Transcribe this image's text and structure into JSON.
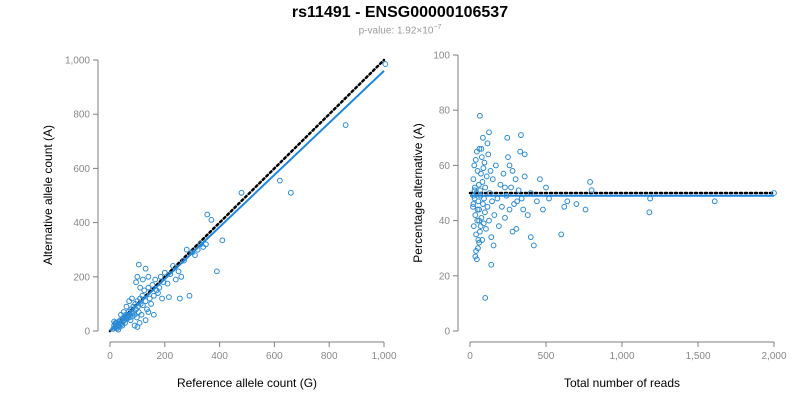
{
  "figure": {
    "title": "rs11491 - ENSG00000106537",
    "subtitle_base": "p-value: 1.92×10",
    "subtitle_exp": "−7"
  },
  "colors": {
    "points": "#2a8ad4",
    "fit_line": "#1f86e0",
    "reference_line": "#000000",
    "axis": "#7f7f7f",
    "tick_text": "#888888"
  },
  "chart_data": [
    {
      "type": "scatter",
      "xlabel": "Reference allele count (G)",
      "ylabel": "Alternative allele count (A)",
      "xlim": [
        0,
        1000
      ],
      "ylim": [
        0,
        1000
      ],
      "xticks": [
        0,
        200,
        400,
        600,
        800,
        1000
      ],
      "xtick_labels": [
        "0",
        "200",
        "400",
        "600",
        "800",
        "1,000"
      ],
      "yticks": [
        0,
        200,
        400,
        600,
        800,
        1000
      ],
      "ytick_labels": [
        "0",
        "200",
        "400",
        "600",
        "800",
        "1,000"
      ],
      "grid": false,
      "reference_line": {
        "style": "dotted",
        "points": [
          [
            0,
            0
          ],
          [
            1000,
            1000
          ]
        ]
      },
      "fit_line": {
        "style": "solid",
        "points": [
          [
            0,
            0
          ],
          [
            1000,
            960
          ]
        ]
      },
      "points": [
        [
          12,
          8
        ],
        [
          15,
          20
        ],
        [
          18,
          12
        ],
        [
          20,
          25
        ],
        [
          22,
          15
        ],
        [
          25,
          30
        ],
        [
          28,
          18
        ],
        [
          30,
          22
        ],
        [
          32,
          35
        ],
        [
          35,
          28
        ],
        [
          38,
          40
        ],
        [
          40,
          30
        ],
        [
          42,
          25
        ],
        [
          45,
          45
        ],
        [
          48,
          35
        ],
        [
          50,
          50
        ],
        [
          52,
          40
        ],
        [
          55,
          30
        ],
        [
          58,
          60
        ],
        [
          60,
          45
        ],
        [
          62,
          55
        ],
        [
          65,
          48
        ],
        [
          68,
          70
        ],
        [
          70,
          60
        ],
        [
          72,
          50
        ],
        [
          75,
          40
        ],
        [
          78,
          80
        ],
        [
          80,
          65
        ],
        [
          82,
          55
        ],
        [
          85,
          90
        ],
        [
          88,
          70
        ],
        [
          90,
          60
        ],
        [
          92,
          100
        ],
        [
          95,
          80
        ],
        [
          98,
          50
        ],
        [
          100,
          110
        ],
        [
          102,
          90
        ],
        [
          105,
          70
        ],
        [
          108,
          30
        ],
        [
          110,
          120
        ],
        [
          112,
          100
        ],
        [
          115,
          60
        ],
        [
          118,
          130
        ],
        [
          120,
          95
        ],
        [
          125,
          150
        ],
        [
          130,
          110
        ],
        [
          135,
          80
        ],
        [
          140,
          160
        ],
        [
          145,
          120
        ],
        [
          150,
          100
        ],
        [
          155,
          170
        ],
        [
          160,
          130
        ],
        [
          165,
          190
        ],
        [
          170,
          150
        ],
        [
          175,
          140
        ],
        [
          180,
          160
        ],
        [
          185,
          200
        ],
        [
          190,
          120
        ],
        [
          195,
          180
        ],
        [
          200,
          215
        ],
        [
          95,
          180
        ],
        [
          100,
          200
        ],
        [
          105,
          245
        ],
        [
          110,
          160
        ],
        [
          120,
          190
        ],
        [
          130,
          230
        ],
        [
          140,
          200
        ],
        [
          60,
          90
        ],
        [
          70,
          110
        ],
        [
          80,
          120
        ],
        [
          210,
          175
        ],
        [
          220,
          210
        ],
        [
          230,
          240
        ],
        [
          240,
          190
        ],
        [
          250,
          220
        ],
        [
          260,
          200
        ],
        [
          270,
          260
        ],
        [
          280,
          300
        ],
        [
          290,
          130
        ],
        [
          300,
          290
        ],
        [
          310,
          280
        ],
        [
          320,
          300
        ],
        [
          330,
          320
        ],
        [
          340,
          310
        ],
        [
          350,
          320
        ],
        [
          355,
          430
        ],
        [
          370,
          410
        ],
        [
          390,
          220
        ],
        [
          410,
          335
        ],
        [
          480,
          510
        ],
        [
          620,
          555
        ],
        [
          660,
          510
        ],
        [
          860,
          760
        ],
        [
          1005,
          985
        ],
        [
          255,
          120
        ],
        [
          215,
          125
        ],
        [
          160,
          60
        ],
        [
          130,
          40
        ],
        [
          140,
          70
        ],
        [
          90,
          20
        ],
        [
          100,
          15
        ],
        [
          25,
          10
        ],
        [
          30,
          5
        ],
        [
          20,
          30
        ],
        [
          15,
          35
        ],
        [
          35,
          15
        ],
        [
          40,
          60
        ],
        [
          45,
          20
        ],
        [
          50,
          70
        ],
        [
          55,
          45
        ]
      ]
    },
    {
      "type": "scatter",
      "xlabel": "Total number of reads",
      "ylabel": "Percentage alternative (A)",
      "xlim": [
        0,
        2000
      ],
      "ylim": [
        0,
        100
      ],
      "xticks": [
        0,
        500,
        1000,
        1500,
        2000
      ],
      "xtick_labels": [
        "0",
        "500",
        "1,000",
        "1,500",
        "2,000"
      ],
      "yticks": [
        0,
        20,
        40,
        60,
        80,
        100
      ],
      "ytick_labels": [
        "0",
        "20",
        "40",
        "60",
        "80",
        "100"
      ],
      "grid": false,
      "reference_line": {
        "style": "dotted",
        "points": [
          [
            0,
            50
          ],
          [
            2000,
            50
          ]
        ]
      },
      "fit_line": {
        "style": "solid",
        "points": [
          [
            0,
            49
          ],
          [
            2000,
            49
          ]
        ]
      },
      "points": [
        [
          20,
          45
        ],
        [
          22,
          55
        ],
        [
          25,
          38
        ],
        [
          28,
          60
        ],
        [
          30,
          48
        ],
        [
          32,
          52
        ],
        [
          35,
          42
        ],
        [
          38,
          62
        ],
        [
          40,
          35
        ],
        [
          42,
          50
        ],
        [
          45,
          65
        ],
        [
          48,
          40
        ],
        [
          50,
          58
        ],
        [
          52,
          30
        ],
        [
          55,
          47
        ],
        [
          58,
          53
        ],
        [
          60,
          44
        ],
        [
          62,
          66
        ],
        [
          65,
          36
        ],
        [
          68,
          51
        ],
        [
          70,
          49
        ],
        [
          72,
          57
        ],
        [
          75,
          41
        ],
        [
          78,
          63
        ],
        [
          80,
          33
        ],
        [
          82,
          54
        ],
        [
          85,
          46
        ],
        [
          88,
          59
        ],
        [
          90,
          39
        ],
        [
          92,
          48
        ],
        [
          95,
          61
        ],
        [
          98,
          43
        ],
        [
          100,
          52
        ],
        [
          105,
          37
        ],
        [
          110,
          56
        ],
        [
          115,
          45
        ],
        [
          120,
          64
        ],
        [
          125,
          40
        ],
        [
          130,
          50
        ],
        [
          135,
          58
        ],
        [
          140,
          34
        ],
        [
          145,
          47
        ],
        [
          150,
          55
        ],
        [
          160,
          42
        ],
        [
          170,
          60
        ],
        [
          180,
          48
        ],
        [
          190,
          38
        ],
        [
          200,
          53
        ],
        [
          210,
          45
        ],
        [
          220,
          57
        ],
        [
          230,
          41
        ],
        [
          240,
          49
        ],
        [
          250,
          63
        ],
        [
          260,
          44
        ],
        [
          270,
          52
        ],
        [
          280,
          36
        ],
        [
          290,
          46
        ],
        [
          300,
          55
        ],
        [
          310,
          47
        ],
        [
          320,
          51
        ],
        [
          340,
          48
        ],
        [
          350,
          44
        ],
        [
          360,
          56
        ],
        [
          380,
          42
        ],
        [
          400,
          50
        ],
        [
          420,
          31
        ],
        [
          440,
          47
        ],
        [
          460,
          55
        ],
        [
          480,
          44
        ],
        [
          500,
          52
        ],
        [
          35,
          27
        ],
        [
          40,
          29
        ],
        [
          45,
          26
        ],
        [
          55,
          33
        ],
        [
          60,
          32
        ],
        [
          65,
          78
        ],
        [
          100,
          12
        ],
        [
          140,
          24
        ],
        [
          155,
          31
        ],
        [
          245,
          70
        ],
        [
          305,
          37
        ],
        [
          330,
          65
        ],
        [
          335,
          71
        ],
        [
          360,
          64
        ],
        [
          400,
          34
        ],
        [
          520,
          48
        ],
        [
          600,
          35
        ],
        [
          620,
          45
        ],
        [
          640,
          47
        ],
        [
          700,
          46
        ],
        [
          760,
          44
        ],
        [
          790,
          54
        ],
        [
          800,
          51
        ],
        [
          1180,
          43
        ],
        [
          1185,
          48
        ],
        [
          1610,
          47
        ],
        [
          2000,
          50
        ],
        [
          260,
          60
        ],
        [
          280,
          58
        ],
        [
          230,
          52
        ],
        [
          85,
          70
        ],
        [
          115,
          68
        ],
        [
          125,
          72
        ],
        [
          75,
          66
        ],
        [
          30,
          51
        ],
        [
          25,
          49
        ],
        [
          22,
          46
        ],
        [
          50,
          44
        ],
        [
          60,
          40
        ],
        [
          70,
          38
        ]
      ]
    }
  ]
}
